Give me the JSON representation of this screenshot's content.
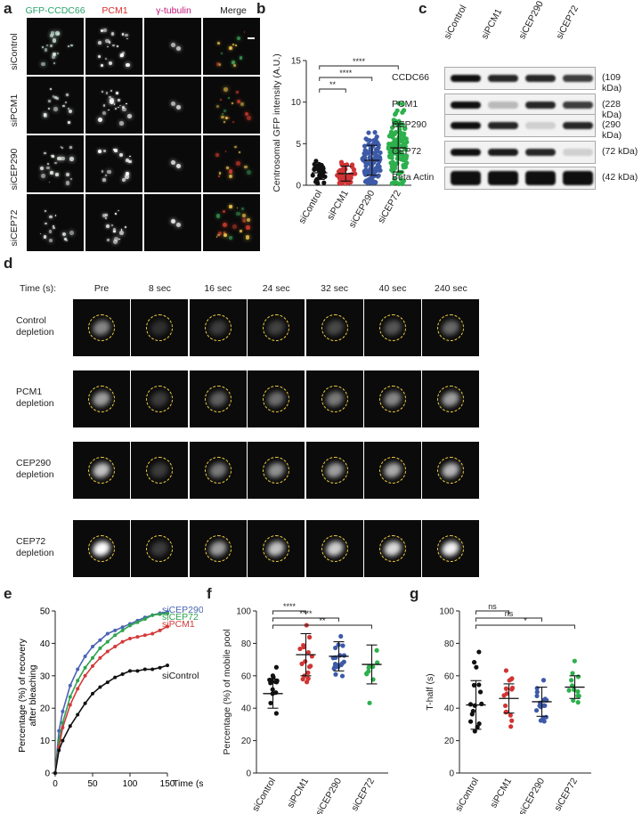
{
  "panel_letters": [
    "a",
    "b",
    "c",
    "d",
    "e",
    "f",
    "g"
  ],
  "a": {
    "columns": [
      {
        "label": "GFP-CCDC66",
        "color": "#2aa36b"
      },
      {
        "label": "PCM1",
        "color": "#d62f2f"
      },
      {
        "label": "γ-tubulin",
        "color": "#c2187a"
      },
      {
        "label": "Merge",
        "color": "#222222"
      }
    ],
    "rows": [
      "siControl",
      "siPCM1",
      "siCEP290",
      "siCEP72"
    ]
  },
  "c": {
    "lanes": [
      "siControl",
      "siPCM1",
      "siCEP290",
      "siCEP72"
    ],
    "bands": [
      {
        "name": "CCDC66",
        "kda": "(109 kDa)"
      },
      {
        "name": "PCM1",
        "kda": "(228 kDa)"
      },
      {
        "name": "CEP290",
        "kda": "(290 kDa)"
      },
      {
        "name": "CEP72",
        "kda": "(72 kDa)"
      },
      {
        "name": "Beta Actin",
        "kda": "(42 kDa)"
      }
    ]
  },
  "d": {
    "time_header": "Time (s):",
    "times": [
      "Pre",
      "8 sec",
      "16 sec",
      "24 sec",
      "32 sec",
      "40 sec",
      "240 sec"
    ],
    "rows": [
      {
        "line1": "Control",
        "line2": "depletion"
      },
      {
        "line1": "PCM1",
        "line2": "depletion"
      },
      {
        "line1": "CEP290",
        "line2": "depletion"
      },
      {
        "line1": "CEP72",
        "line2": "depletion"
      }
    ]
  },
  "chart_data": [
    {
      "id": "b",
      "type": "scatter",
      "ylabel": "Centrosomal GFP intensity (A.U.)",
      "ylim": [
        0,
        15
      ],
      "yticks": [
        0,
        5,
        10,
        15
      ],
      "categories": [
        "siControl",
        "siPCM1",
        "siCEP290",
        "siCEP72"
      ],
      "colors": [
        "#111111",
        "#d03434",
        "#3d5aa8",
        "#2db04d"
      ],
      "means": [
        1.5,
        1.4,
        3.0,
        4.5
      ],
      "sd": [
        0.8,
        0.9,
        1.8,
        2.9
      ],
      "significance": [
        {
          "from": 0,
          "to": 1,
          "label": "**"
        },
        {
          "from": 0,
          "to": 2,
          "label": "****"
        },
        {
          "from": 0,
          "to": 3,
          "label": "****"
        }
      ]
    },
    {
      "id": "e",
      "type": "line",
      "xlabel": "Time (s)",
      "ylabel_lines": [
        "Percentage (%) of recovery",
        "after bleaching"
      ],
      "xlim": [
        0,
        150
      ],
      "ylim": [
        0,
        50
      ],
      "xticks": [
        0,
        50,
        100,
        150
      ],
      "yticks": [
        0,
        10,
        20,
        30,
        40,
        50
      ],
      "series": [
        {
          "name": "siCEP290",
          "color": "#4a64b3",
          "points": [
            [
              0,
              0
            ],
            [
              5,
              13
            ],
            [
              10,
              19
            ],
            [
              20,
              27
            ],
            [
              30,
              32
            ],
            [
              40,
              36
            ],
            [
              50,
              39
            ],
            [
              60,
              41
            ],
            [
              70,
              43
            ],
            [
              80,
              44
            ],
            [
              90,
              45
            ],
            [
              100,
              46
            ],
            [
              110,
              47
            ],
            [
              120,
              48
            ],
            [
              130,
              48.7
            ],
            [
              140,
              49.3
            ],
            [
              150,
              49.7
            ]
          ]
        },
        {
          "name": "siCEP72",
          "color": "#2ea34f",
          "points": [
            [
              0,
              0
            ],
            [
              5,
              10
            ],
            [
              10,
              15.5
            ],
            [
              20,
              23.5
            ],
            [
              30,
              28.5
            ],
            [
              40,
              32.5
            ],
            [
              50,
              35.5
            ],
            [
              60,
              38.5
            ],
            [
              70,
              40.5
            ],
            [
              80,
              42.5
            ],
            [
              90,
              44
            ],
            [
              100,
              45.5
            ],
            [
              110,
              46.5
            ],
            [
              120,
              47.5
            ],
            [
              130,
              48.7
            ],
            [
              140,
              49
            ],
            [
              150,
              49.2
            ]
          ]
        },
        {
          "name": "siPCM1",
          "color": "#d33a3a",
          "points": [
            [
              0,
              0
            ],
            [
              5,
              8
            ],
            [
              10,
              14
            ],
            [
              20,
              21
            ],
            [
              30,
              26
            ],
            [
              40,
              30
            ],
            [
              50,
              33
            ],
            [
              60,
              35.5
            ],
            [
              70,
              37.5
            ],
            [
              80,
              39
            ],
            [
              90,
              40.5
            ],
            [
              100,
              41.5
            ],
            [
              110,
              42
            ],
            [
              120,
              42.5
            ],
            [
              130,
              43
            ],
            [
              140,
              44
            ],
            [
              150,
              45.2
            ]
          ]
        },
        {
          "name": "siControl",
          "color": "#111111",
          "points": [
            [
              0,
              0
            ],
            [
              5,
              7
            ],
            [
              10,
              10
            ],
            [
              20,
              14.5
            ],
            [
              30,
              18
            ],
            [
              40,
              21.5
            ],
            [
              50,
              24.5
            ],
            [
              60,
              26.5
            ],
            [
              70,
              28
            ],
            [
              80,
              29.5
            ],
            [
              90,
              30.5
            ],
            [
              100,
              31.5
            ],
            [
              110,
              31.5
            ],
            [
              120,
              32
            ],
            [
              130,
              32
            ],
            [
              140,
              32.5
            ],
            [
              150,
              33.2
            ]
          ]
        }
      ]
    },
    {
      "id": "f",
      "type": "scatter",
      "ylabel": "Percentage (%) of mobile pool",
      "ylim": [
        0,
        100
      ],
      "yticks": [
        0,
        20,
        40,
        60,
        80,
        100
      ],
      "categories": [
        "siControl",
        "siPCM1",
        "siCEP290",
        "siCEP72"
      ],
      "colors": [
        "#111111",
        "#d03434",
        "#3d5aa8",
        "#2db04d"
      ],
      "means": [
        49,
        73,
        72,
        67
      ],
      "sd": [
        9,
        13,
        9,
        12
      ],
      "significance": [
        {
          "from": 0,
          "to": 1,
          "label": "****"
        },
        {
          "from": 0,
          "to": 2,
          "label": "****"
        },
        {
          "from": 0,
          "to": 3,
          "label": "**"
        }
      ]
    },
    {
      "id": "g",
      "type": "scatter",
      "ylabel": "T-half (s)",
      "ylim": [
        0,
        100
      ],
      "yticks": [
        0,
        20,
        40,
        60,
        80,
        100
      ],
      "categories": [
        "siControl",
        "siPCM1",
        "siCEP290",
        "siCEP72"
      ],
      "colors": [
        "#111111",
        "#d03434",
        "#3d5aa8",
        "#2db04d"
      ],
      "means": [
        42,
        46,
        44,
        53
      ],
      "sd": [
        15,
        9,
        9,
        7
      ],
      "significance": [
        {
          "from": 0,
          "to": 1,
          "label": "ns"
        },
        {
          "from": 0,
          "to": 2,
          "label": "ns"
        },
        {
          "from": 0,
          "to": 3,
          "label": "*"
        }
      ]
    }
  ]
}
